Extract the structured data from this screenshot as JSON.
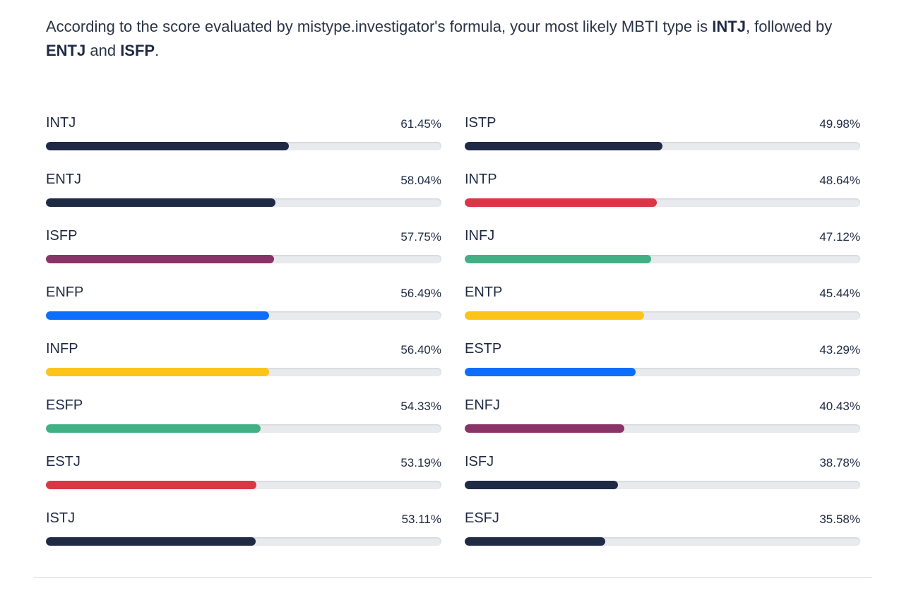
{
  "intro": {
    "text_before": "According to the score evaluated by mistype.investigator's formula, your most likely MBTI type is ",
    "top1": "INTJ",
    "text_mid1": ", followed by ",
    "top2": "ENTJ",
    "text_mid2": " and ",
    "top3": "ISFP",
    "text_end": "."
  },
  "colors": {
    "navy": "#1f2a44",
    "red": "#dc3545",
    "purple": "#8a3366",
    "green": "#42b085",
    "blue": "#0d6efd",
    "yellow": "#fcc419",
    "track": "#e9eaee"
  },
  "left_column": [
    {
      "type": "INTJ",
      "percent_label": "61.45%",
      "value": 61.45,
      "color": "#1f2a44"
    },
    {
      "type": "ENTJ",
      "percent_label": "58.04%",
      "value": 58.04,
      "color": "#1f2a44"
    },
    {
      "type": "ISFP",
      "percent_label": "57.75%",
      "value": 57.75,
      "color": "#8a3366"
    },
    {
      "type": "ENFP",
      "percent_label": "56.49%",
      "value": 56.49,
      "color": "#0d6efd"
    },
    {
      "type": "INFP",
      "percent_label": "56.40%",
      "value": 56.4,
      "color": "#fcc419"
    },
    {
      "type": "ESFP",
      "percent_label": "54.33%",
      "value": 54.33,
      "color": "#42b085"
    },
    {
      "type": "ESTJ",
      "percent_label": "53.19%",
      "value": 53.19,
      "color": "#dc3545"
    },
    {
      "type": "ISTJ",
      "percent_label": "53.11%",
      "value": 53.11,
      "color": "#1f2a44"
    }
  ],
  "right_column": [
    {
      "type": "ISTP",
      "percent_label": "49.98%",
      "value": 49.98,
      "color": "#1f2a44"
    },
    {
      "type": "INTP",
      "percent_label": "48.64%",
      "value": 48.64,
      "color": "#dc3545"
    },
    {
      "type": "INFJ",
      "percent_label": "47.12%",
      "value": 47.12,
      "color": "#42b085"
    },
    {
      "type": "ENTP",
      "percent_label": "45.44%",
      "value": 45.44,
      "color": "#fcc419"
    },
    {
      "type": "ESTP",
      "percent_label": "43.29%",
      "value": 43.29,
      "color": "#0d6efd"
    },
    {
      "type": "ENFJ",
      "percent_label": "40.43%",
      "value": 40.43,
      "color": "#8a3366"
    },
    {
      "type": "ISFJ",
      "percent_label": "38.78%",
      "value": 38.78,
      "color": "#1f2a44"
    },
    {
      "type": "ESFJ",
      "percent_label": "35.58%",
      "value": 35.58,
      "color": "#1f2a44"
    }
  ]
}
